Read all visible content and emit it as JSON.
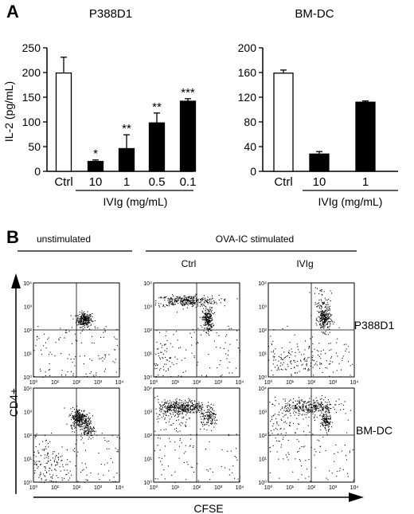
{
  "panel_a": {
    "letter": "A",
    "charts": [
      {
        "title": "P388D1",
        "ylabel": "IL-2 (pg/mL)",
        "yticks": [
          "0",
          "50",
          "100",
          "150",
          "200",
          "250"
        ],
        "group_label": "IVIg (mg/mL)"
      },
      {
        "title": "BM-DC",
        "ylabel": "",
        "yticks": [
          "0",
          "40",
          "80",
          "120",
          "160",
          "200"
        ],
        "group_label": "IVIg (mg/mL)"
      }
    ]
  },
  "panel_b": {
    "letter": "B",
    "header_unstimulated": "unstimulated",
    "header_stimulated": "OVA-IC stimulated",
    "col_ctrl": "Ctrl",
    "col_ivig": "IVIg",
    "row_labels": [
      "P388D1",
      "BM-DC"
    ],
    "y_axis_label": "CD4+",
    "x_axis_label": "CFSE",
    "flow_tick_labels": [
      "10⁰",
      "10¹",
      "10²",
      "10³",
      "10⁴"
    ]
  },
  "chart_data": [
    {
      "type": "bar",
      "title": "P388D1",
      "ylabel": "IL-2 (pg/mL)",
      "xlabel": "IVIg (mg/mL)",
      "categories": [
        "Ctrl",
        "10",
        "1",
        "0.5",
        "0.1"
      ],
      "values": [
        199,
        20,
        46,
        98,
        142
      ],
      "errors": [
        32,
        3,
        28,
        20,
        5
      ],
      "fills": [
        "#ffffff",
        "#000000",
        "#000000",
        "#000000",
        "#000000"
      ],
      "annotations": [
        "",
        "*",
        "**",
        "**",
        "***"
      ],
      "ylim": [
        0,
        250
      ]
    },
    {
      "type": "bar",
      "title": "BM-DC",
      "ylabel": "",
      "xlabel": "IVIg (mg/mL)",
      "categories": [
        "Ctrl",
        "10",
        "1"
      ],
      "values": [
        159,
        28,
        112
      ],
      "errors": [
        5,
        4,
        2
      ],
      "fills": [
        "#ffffff",
        "#000000",
        "#000000"
      ],
      "annotations": [
        "",
        "",
        ""
      ],
      "ylim": [
        0,
        200
      ]
    }
  ]
}
